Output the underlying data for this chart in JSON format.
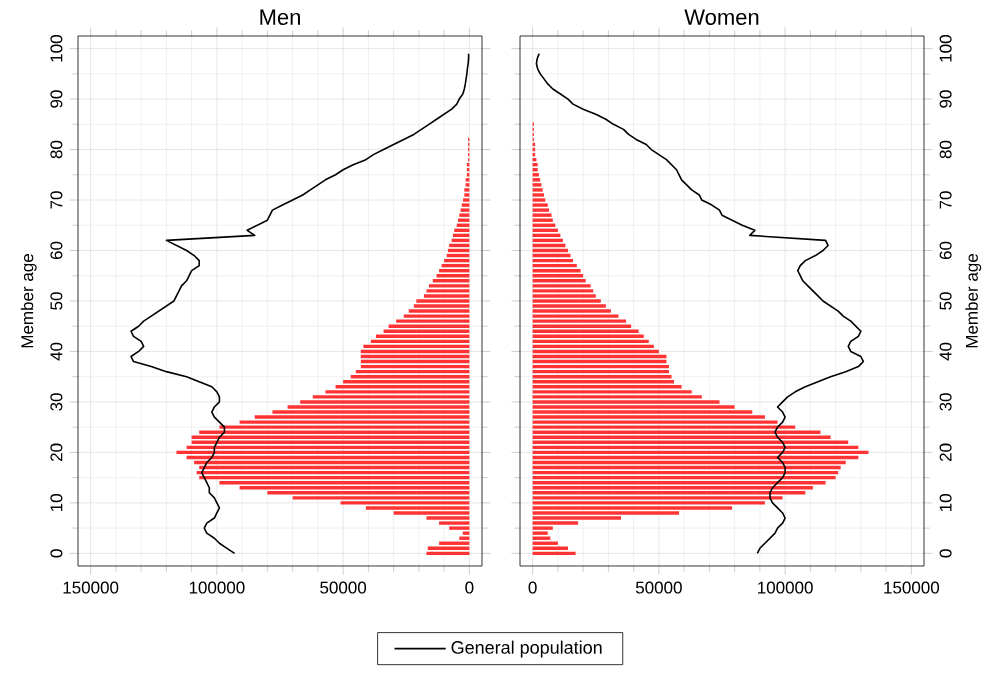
{
  "chart_data": [
    {
      "type": "bar",
      "orientation": "horizontal",
      "title": "Men",
      "ylabel": "Member age",
      "xlim": [
        155000,
        -5000
      ],
      "xticks": [
        150000,
        100000,
        50000,
        0
      ],
      "ylim": [
        -2.5,
        102.5
      ],
      "yticks": [
        0,
        10,
        20,
        30,
        40,
        50,
        60,
        70,
        80,
        90,
        100
      ],
      "grid": true,
      "legend": "bottom",
      "x": [
        0,
        1,
        2,
        3,
        4,
        5,
        6,
        7,
        8,
        9,
        10,
        11,
        12,
        13,
        14,
        15,
        16,
        17,
        18,
        19,
        20,
        21,
        22,
        23,
        24,
        25,
        26,
        27,
        28,
        29,
        30,
        31,
        32,
        33,
        34,
        35,
        36,
        37,
        38,
        39,
        40,
        41,
        42,
        43,
        44,
        45,
        46,
        47,
        48,
        49,
        50,
        51,
        52,
        53,
        54,
        55,
        56,
        57,
        58,
        59,
        60,
        61,
        62,
        63,
        64,
        65,
        66,
        67,
        68,
        69,
        70,
        71,
        72,
        73,
        74,
        75,
        76,
        77,
        78,
        79,
        80,
        81,
        82,
        83,
        84,
        85,
        86,
        87,
        88,
        89,
        90,
        91,
        92,
        93,
        94,
        95,
        96,
        97,
        98,
        99
      ],
      "series": [
        {
          "color": "#ff3333",
          "values": [
            17000,
            16500,
            12000,
            4000,
            2600,
            8000,
            12000,
            17000,
            30000,
            41000,
            51000,
            70000,
            80000,
            91000,
            99000,
            107000,
            108000,
            107000,
            109000,
            112000,
            116000,
            112000,
            110000,
            110000,
            107000,
            99000,
            91000,
            85000,
            78000,
            72000,
            67000,
            62000,
            57000,
            53000,
            50000,
            47000,
            45000,
            43000,
            43000,
            43000,
            43000,
            42000,
            39000,
            37000,
            34000,
            32000,
            29000,
            26000,
            24000,
            22000,
            21000,
            18000,
            17000,
            16000,
            14500,
            13000,
            12000,
            11000,
            10000,
            9000,
            8500,
            8000,
            7000,
            6500,
            6000,
            5000,
            4500,
            4000,
            3500,
            3000,
            2500,
            2000,
            2000,
            1500,
            1500,
            1000,
            1000,
            1000,
            500,
            500,
            500,
            500,
            500,
            0,
            0,
            0,
            0,
            0,
            0,
            0,
            0,
            0,
            0,
            0,
            0,
            0,
            0,
            0,
            0,
            0
          ]
        },
        {
          "type": "line",
          "name": "General population",
          "color": "#000000",
          "values": [
            93000,
            96000,
            99000,
            101000,
            104000,
            105000,
            104000,
            101000,
            100000,
            99000,
            100000,
            101000,
            103000,
            103000,
            104000,
            105000,
            106000,
            105000,
            104000,
            102000,
            101000,
            101000,
            100000,
            99000,
            97000,
            97000,
            99000,
            101000,
            102000,
            101000,
            99000,
            99000,
            100000,
            102000,
            107000,
            112000,
            120000,
            126000,
            133000,
            134000,
            131000,
            129000,
            130000,
            133000,
            134000,
            131000,
            129000,
            126000,
            123000,
            120000,
            117000,
            116000,
            115000,
            114000,
            112000,
            111000,
            110000,
            107000,
            107000,
            109000,
            112000,
            116000,
            120000,
            85000,
            88000,
            84000,
            80000,
            79000,
            78000,
            74000,
            70000,
            66000,
            63000,
            60000,
            57000,
            53000,
            50000,
            46000,
            41000,
            38000,
            34000,
            30000,
            26000,
            22000,
            19000,
            16000,
            13000,
            10000,
            7000,
            5000,
            4000,
            2600,
            2000,
            1600,
            1300,
            1000,
            800,
            500,
            300,
            300
          ]
        }
      ]
    },
    {
      "type": "bar",
      "orientation": "horizontal",
      "title": "Women",
      "ylabel": "Member age",
      "xlim": [
        -5000,
        155000
      ],
      "xticks": [
        0,
        50000,
        100000,
        150000
      ],
      "ylim": [
        -2.5,
        102.5
      ],
      "yticks": [
        0,
        10,
        20,
        30,
        40,
        50,
        60,
        70,
        80,
        90,
        100
      ],
      "grid": true,
      "x": [
        0,
        1,
        2,
        3,
        4,
        5,
        6,
        7,
        8,
        9,
        10,
        11,
        12,
        13,
        14,
        15,
        16,
        17,
        18,
        19,
        20,
        21,
        22,
        23,
        24,
        25,
        26,
        27,
        28,
        29,
        30,
        31,
        32,
        33,
        34,
        35,
        36,
        37,
        38,
        39,
        40,
        41,
        42,
        43,
        44,
        45,
        46,
        47,
        48,
        49,
        50,
        51,
        52,
        53,
        54,
        55,
        56,
        57,
        58,
        59,
        60,
        61,
        62,
        63,
        64,
        65,
        66,
        67,
        68,
        69,
        70,
        71,
        72,
        73,
        74,
        75,
        76,
        77,
        78,
        79,
        80,
        81,
        82,
        83,
        84,
        85,
        86,
        87,
        88,
        89,
        90,
        91,
        92,
        93,
        94,
        95,
        96,
        97,
        98,
        99
      ],
      "series": [
        {
          "color": "#ff3333",
          "values": [
            17000,
            14000,
            10000,
            7000,
            6000,
            8000,
            18000,
            35000,
            58000,
            79000,
            92000,
            99000,
            108000,
            111000,
            116000,
            120000,
            121000,
            122000,
            124000,
            129000,
            133000,
            129000,
            125000,
            118000,
            114000,
            104000,
            97000,
            92000,
            87000,
            80000,
            74000,
            67000,
            63000,
            59000,
            56000,
            55000,
            54000,
            54000,
            53000,
            53000,
            50000,
            48000,
            46000,
            44000,
            42000,
            39000,
            37000,
            34000,
            31000,
            29000,
            27000,
            25000,
            24000,
            23000,
            21000,
            20000,
            19000,
            17500,
            16000,
            15000,
            14000,
            13000,
            12000,
            11000,
            10000,
            9000,
            8000,
            7500,
            6500,
            6000,
            5000,
            4500,
            4000,
            3500,
            3000,
            2500,
            2000,
            2000,
            1500,
            1000,
            1000,
            1000,
            500,
            500,
            500,
            500,
            0,
            0,
            0,
            0,
            0,
            0,
            0,
            0,
            0,
            0,
            0,
            0,
            0,
            0
          ]
        },
        {
          "type": "line",
          "color": "#000000",
          "values": [
            89000,
            90000,
            92000,
            94000,
            96000,
            97000,
            99000,
            100000,
            99000,
            97000,
            95000,
            94000,
            94000,
            95000,
            97000,
            99000,
            100000,
            100000,
            99000,
            97000,
            99000,
            100000,
            99000,
            97000,
            96000,
            97000,
            99000,
            100000,
            99000,
            97000,
            99000,
            101000,
            104000,
            108000,
            113000,
            118000,
            124000,
            129000,
            131000,
            130000,
            126000,
            125000,
            126000,
            129000,
            130000,
            128000,
            126000,
            123000,
            121000,
            118000,
            115000,
            113000,
            111000,
            109000,
            107000,
            106000,
            105000,
            106000,
            108000,
            112000,
            115000,
            117000,
            116000,
            86000,
            88000,
            83000,
            79000,
            75000,
            74000,
            71000,
            67000,
            66000,
            63000,
            61000,
            59000,
            58000,
            57000,
            55000,
            53000,
            50000,
            47000,
            45000,
            41000,
            38000,
            36000,
            32000,
            29000,
            25000,
            20000,
            16000,
            14000,
            11000,
            8000,
            6000,
            4500,
            3000,
            2000,
            1500,
            1800,
            2600
          ]
        }
      ]
    }
  ]
}
